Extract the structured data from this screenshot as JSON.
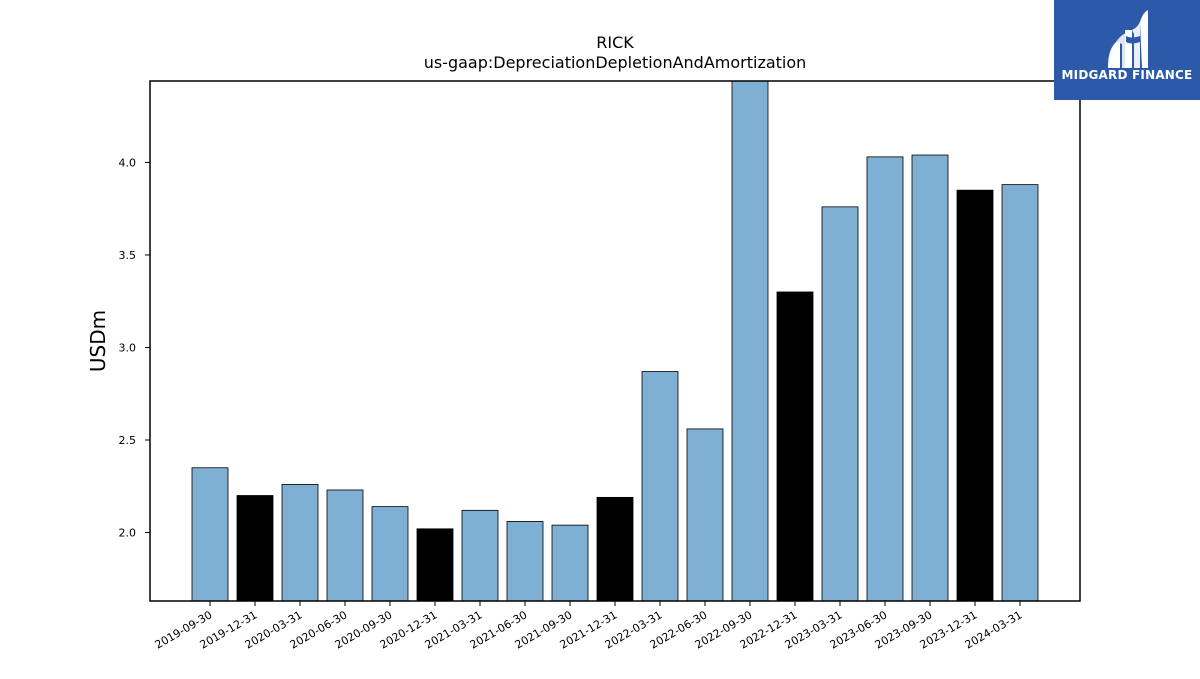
{
  "chart_data": {
    "type": "bar",
    "title": "RICK",
    "subtitle": "us-gaap:DepreciationDepletionAndAmortization",
    "xlabel": "",
    "ylabel": "USDm",
    "ylim": [
      1.63,
      4.44
    ],
    "yticks": [
      2.0,
      2.5,
      3.0,
      3.5,
      4.0
    ],
    "ytick_labels": [
      "2.0",
      "2.5",
      "3.0",
      "3.5",
      "4.0"
    ],
    "grid": false,
    "categories": [
      "2019-09-30",
      "2019-12-31",
      "2020-03-31",
      "2020-06-30",
      "2020-09-30",
      "2020-12-31",
      "2021-03-31",
      "2021-06-30",
      "2021-09-30",
      "2021-12-31",
      "2022-03-31",
      "2022-06-30",
      "2022-09-30",
      "2022-12-31",
      "2023-03-31",
      "2023-06-30",
      "2023-09-30",
      "2023-12-31",
      "2024-03-31"
    ],
    "values": [
      2.35,
      2.2,
      2.26,
      2.23,
      2.14,
      2.02,
      2.12,
      2.06,
      2.04,
      2.19,
      2.87,
      2.56,
      4.44,
      3.3,
      3.76,
      4.03,
      4.04,
      3.85,
      3.88
    ],
    "bar_colors": [
      "#7fafd3",
      "#000000",
      "#7fafd3",
      "#7fafd3",
      "#7fafd3",
      "#000000",
      "#7fafd3",
      "#7fafd3",
      "#7fafd3",
      "#000000",
      "#7fafd3",
      "#7fafd3",
      "#7fafd3",
      "#000000",
      "#7fafd3",
      "#7fafd3",
      "#7fafd3",
      "#000000",
      "#7fafd3"
    ],
    "colors": {
      "quarter": "#7fafd3",
      "year_end": "#000000"
    }
  },
  "logo": {
    "text": "MIDGARD FINANCE",
    "icon": "midgard-logo-icon"
  }
}
